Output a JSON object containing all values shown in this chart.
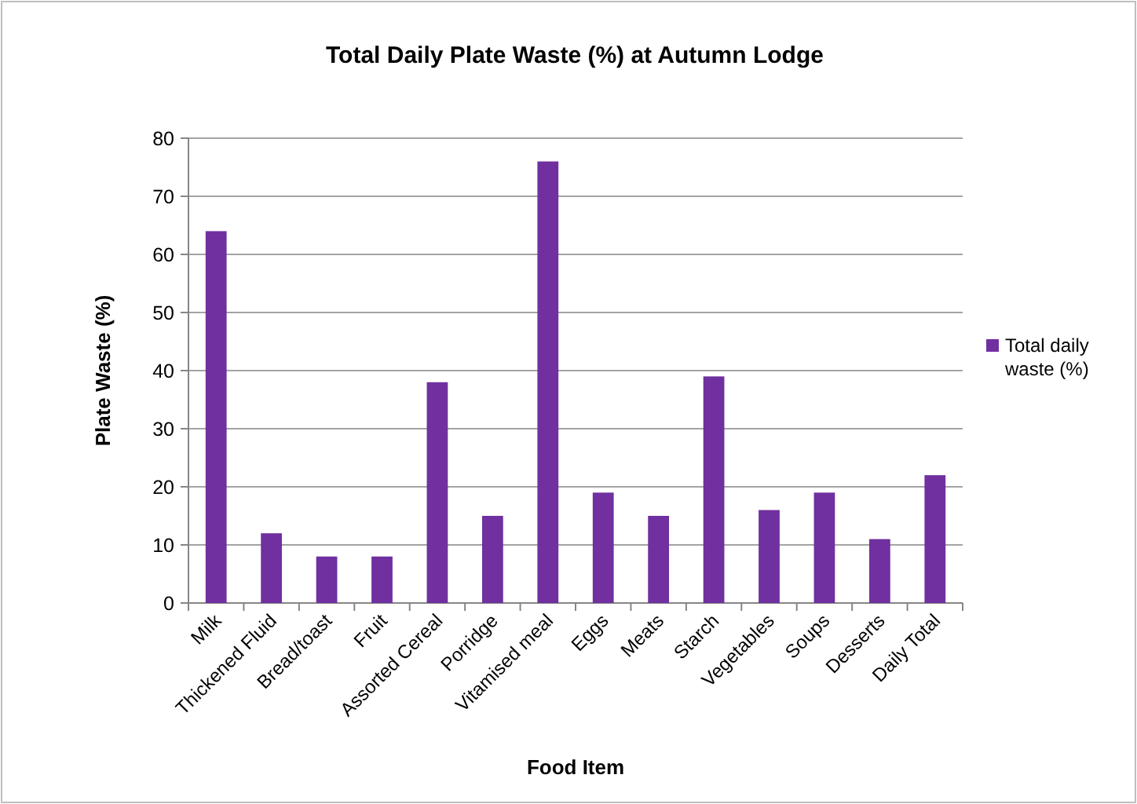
{
  "chart_data": {
    "type": "bar",
    "title": "Total Daily Plate Waste (%) at Autumn Lodge",
    "xlabel": "Food Item",
    "ylabel": "Plate Waste (%)",
    "categories": [
      "Milk",
      "Thickened Fluid",
      "Bread/toast",
      "Fruit",
      "Assorted Cereal",
      "Porridge",
      "Vitamised meal",
      "Eggs",
      "Meats",
      "Starch",
      "Vegetables",
      "Soups",
      "Desserts",
      "Daily Total"
    ],
    "series": [
      {
        "name": "Total daily waste (%)",
        "color": "#7030a0",
        "values": [
          64,
          12,
          8,
          8,
          38,
          15,
          76,
          19,
          15,
          39,
          16,
          19,
          11,
          22
        ]
      }
    ],
    "ylim": [
      0,
      80
    ],
    "yticks": [
      0,
      10,
      20,
      30,
      40,
      50,
      60,
      70,
      80
    ],
    "grid": "y",
    "legend": "right"
  }
}
